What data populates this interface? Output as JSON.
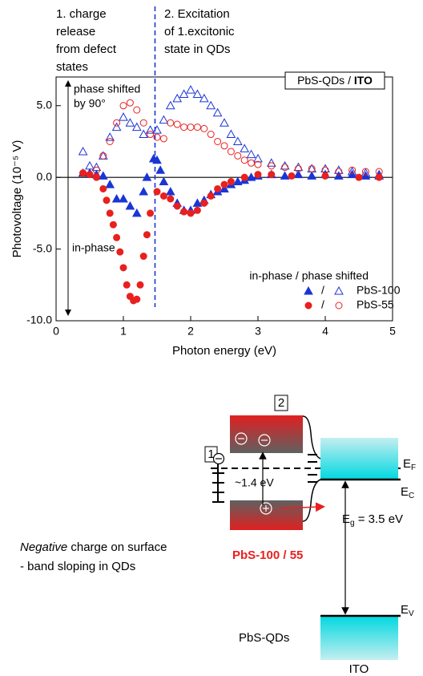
{
  "chart_data": {
    "type": "scatter",
    "annotations_left": [
      "1. charge",
      "release",
      "from defect",
      "states"
    ],
    "annotations_right": [
      "2. Excitation",
      "of 1.excitonic",
      "state in QDs"
    ],
    "box_label": "PbS-QDs / ",
    "box_label_bold": "ITO",
    "arrow_top_label": [
      "phase shifted",
      "by 90°"
    ],
    "arrow_bottom_label": "in-phase",
    "xlabel": "Photon energy (eV)",
    "ylabel": "Photovoltage (10⁻⁵ V)",
    "xlim": [
      0,
      5
    ],
    "ylim": [
      -10,
      7
    ],
    "xticks": [
      0,
      1,
      2,
      3,
      4,
      5
    ],
    "yticks": [
      {
        "value": -10,
        "label": "-10.0"
      },
      {
        "value": -5,
        "label": "-5.0"
      },
      {
        "value": 0,
        "label": "0.0"
      },
      {
        "value": 5,
        "label": "5.0"
      }
    ],
    "vline": 1.47,
    "legend_title": "in-phase / phase shifted",
    "legend_separator": "/",
    "legend": "lower right",
    "series": [
      {
        "name": "PbS-100",
        "color": "#1a35d6",
        "marker": "triangle",
        "filled": true,
        "x": [
          0.4,
          0.5,
          0.6,
          0.7,
          0.8,
          0.9,
          1.0,
          1.1,
          1.2,
          1.3,
          1.35,
          1.45,
          1.5,
          1.55,
          1.6,
          1.7,
          1.8,
          1.9,
          2.0,
          2.1,
          2.2,
          2.3,
          2.4,
          2.5,
          2.6,
          2.7,
          2.8,
          2.9,
          3.0,
          3.2,
          3.4,
          3.6,
          3.8,
          4.0,
          4.2,
          4.4,
          4.6,
          4.8
        ],
        "values": [
          0.3,
          0.3,
          0.2,
          0.1,
          -0.5,
          -1.5,
          -1.5,
          -2.0,
          -2.5,
          -1.0,
          0.0,
          1.3,
          1.2,
          0.5,
          -0.3,
          -1.0,
          -1.8,
          -2.3,
          -2.3,
          -1.8,
          -1.6,
          -1.2,
          -1.0,
          -0.8,
          -0.5,
          -0.3,
          -0.2,
          0.0,
          0.1,
          0.2,
          0.1,
          0.2,
          0.1,
          0.2,
          0.1,
          0.2,
          0.1,
          0.1
        ]
      },
      {
        "color": "#1a35d6",
        "marker": "triangle",
        "filled": false,
        "x": [
          0.4,
          0.5,
          0.6,
          0.7,
          0.8,
          0.9,
          1.0,
          1.1,
          1.2,
          1.3,
          1.4,
          1.5,
          1.6,
          1.7,
          1.8,
          1.9,
          2.0,
          2.1,
          2.2,
          2.3,
          2.4,
          2.5,
          2.6,
          2.7,
          2.8,
          2.9,
          3.0,
          3.2,
          3.4,
          3.6,
          3.8,
          4.0,
          4.2,
          4.4,
          4.6,
          4.8
        ],
        "values": [
          1.8,
          0.8,
          0.7,
          1.5,
          2.8,
          3.5,
          4.2,
          3.8,
          3.5,
          3.0,
          3.3,
          3.3,
          4.0,
          5.0,
          5.5,
          5.8,
          6.1,
          5.8,
          5.5,
          5.0,
          4.5,
          3.8,
          3.0,
          2.5,
          2.0,
          1.6,
          1.3,
          1.0,
          0.8,
          0.7,
          0.6,
          0.6,
          0.5,
          0.4,
          0.3,
          0.2
        ]
      },
      {
        "name": "PbS-55",
        "color": "#e8201e",
        "marker": "circle",
        "filled": true,
        "x": [
          0.4,
          0.5,
          0.6,
          0.7,
          0.75,
          0.8,
          0.85,
          0.9,
          0.95,
          1.0,
          1.05,
          1.1,
          1.15,
          1.2,
          1.25,
          1.3,
          1.35,
          1.4,
          1.5,
          1.6,
          1.7,
          1.8,
          1.9,
          2.0,
          2.1,
          2.2,
          2.3,
          2.4,
          2.5,
          2.6,
          2.8,
          3.0,
          3.2,
          3.5,
          4.0,
          4.5,
          4.8
        ],
        "values": [
          0.3,
          0.2,
          0.0,
          -0.8,
          -1.6,
          -2.5,
          -3.3,
          -4.2,
          -5.2,
          -6.3,
          -7.5,
          -8.3,
          -8.6,
          -8.5,
          -7.5,
          -5.5,
          -4.0,
          -2.5,
          -1.0,
          -1.3,
          -1.5,
          -2.0,
          -2.4,
          -2.5,
          -2.3,
          -1.8,
          -1.3,
          -0.8,
          -0.5,
          -0.3,
          0.0,
          0.2,
          0.2,
          0.1,
          0.1,
          0.0,
          0.0
        ]
      },
      {
        "color": "#e8201e",
        "marker": "circle",
        "filled": false,
        "x": [
          0.4,
          0.6,
          0.7,
          0.8,
          0.9,
          1.0,
          1.1,
          1.2,
          1.3,
          1.4,
          1.5,
          1.6,
          1.7,
          1.8,
          1.9,
          2.0,
          2.1,
          2.2,
          2.3,
          2.4,
          2.5,
          2.6,
          2.7,
          2.8,
          2.9,
          3.0,
          3.2,
          3.4,
          3.6,
          3.8,
          4.0,
          4.2,
          4.4,
          4.6,
          4.8
        ],
        "values": [
          0.3,
          0.5,
          1.5,
          2.5,
          3.8,
          5.0,
          5.2,
          4.7,
          3.8,
          3.0,
          2.8,
          2.7,
          3.8,
          3.7,
          3.5,
          3.5,
          3.5,
          3.4,
          3.0,
          2.5,
          2.2,
          1.8,
          1.5,
          1.2,
          1.0,
          0.9,
          0.8,
          0.7,
          0.6,
          0.6,
          0.5,
          0.4,
          0.5,
          0.4,
          0.4
        ]
      }
    ]
  },
  "diagram": {
    "box_2": "2",
    "box_1": "1",
    "gap_label": "~1.4 eV",
    "ef": {
      "main": "E",
      "sub": "F"
    },
    "ec": {
      "main": "E",
      "sub": "C"
    },
    "ev": {
      "main": "E",
      "sub": "V"
    },
    "eg": {
      "main": "E",
      "sub": "g",
      "rest": " = 3.5 eV"
    },
    "sample_label": "PbS-100 / 55",
    "note_emphasis": "Negative",
    "note_rest": " charge on surface",
    "note_line2": "- band sloping in QDs",
    "qd_label": "PbS-QDs",
    "ito_label": "ITO"
  }
}
